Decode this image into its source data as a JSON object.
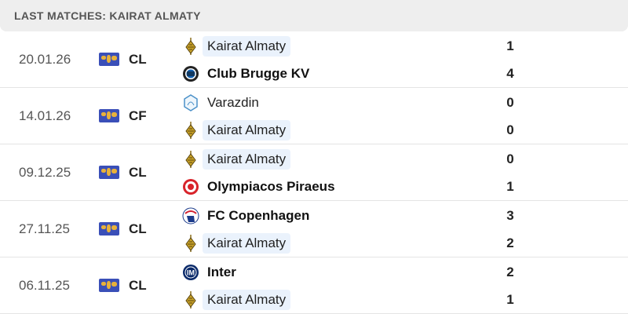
{
  "header": {
    "title": "LAST MATCHES: KAIRAT ALMATY"
  },
  "matches": [
    {
      "date": "20.01.26",
      "competition": "CL",
      "home": {
        "name": "Kairat Almaty",
        "logo": "kairat-logo",
        "score": "1",
        "highlight": true,
        "bold": false
      },
      "away": {
        "name": "Club Brugge KV",
        "logo": "club-brugge-logo",
        "score": "4",
        "highlight": false,
        "bold": true
      }
    },
    {
      "date": "14.01.26",
      "competition": "CF",
      "home": {
        "name": "Varazdin",
        "logo": "varazdin-logo",
        "score": "0",
        "highlight": false,
        "bold": false
      },
      "away": {
        "name": "Kairat Almaty",
        "logo": "kairat-logo",
        "score": "0",
        "highlight": true,
        "bold": false
      }
    },
    {
      "date": "09.12.25",
      "competition": "CL",
      "home": {
        "name": "Kairat Almaty",
        "logo": "kairat-logo",
        "score": "0",
        "highlight": true,
        "bold": false
      },
      "away": {
        "name": "Olympiacos Piraeus",
        "logo": "olympiacos-logo",
        "score": "1",
        "highlight": false,
        "bold": true
      }
    },
    {
      "date": "27.11.25",
      "competition": "CL",
      "home": {
        "name": "FC Copenhagen",
        "logo": "copenhagen-logo",
        "score": "3",
        "highlight": false,
        "bold": true
      },
      "away": {
        "name": "Kairat Almaty",
        "logo": "kairat-logo",
        "score": "2",
        "highlight": true,
        "bold": false
      }
    },
    {
      "date": "06.11.25",
      "competition": "CL",
      "home": {
        "name": "Inter",
        "logo": "inter-logo",
        "score": "2",
        "highlight": false,
        "bold": true
      },
      "away": {
        "name": "Kairat Almaty",
        "logo": "kairat-logo",
        "score": "1",
        "highlight": true,
        "bold": false
      }
    }
  ],
  "colors": {
    "highlight": "#eaf2fc",
    "header_bg": "#eeeeee",
    "flag": "#3a4fb8"
  }
}
